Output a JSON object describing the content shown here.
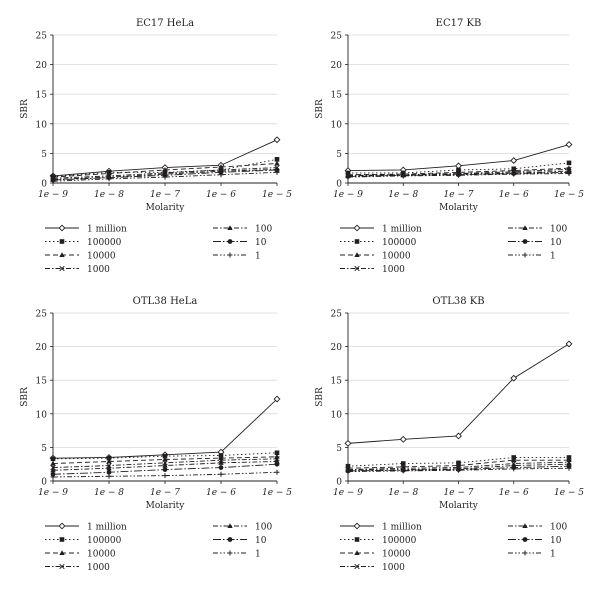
{
  "chart_data": [
    {
      "type": "line",
      "title": "EC17 HeLa",
      "xlabel": "Molarity",
      "ylabel": "SBR",
      "categories": [
        "1e − 9",
        "1e − 8",
        "1e − 7",
        "1e − 6",
        "1e − 5"
      ],
      "ylim": [
        0,
        25
      ],
      "yticks": [
        0,
        5,
        10,
        15,
        20,
        25
      ],
      "series": [
        {
          "name": "1 million",
          "values": [
            1.2,
            2.0,
            2.6,
            3.0,
            7.3
          ]
        },
        {
          "name": "100000",
          "values": [
            1.1,
            1.8,
            1.8,
            2.2,
            4.0
          ]
        },
        {
          "name": "10000",
          "values": [
            1.0,
            1.6,
            2.2,
            2.7,
            3.3
          ]
        },
        {
          "name": "1000",
          "values": [
            0.8,
            1.2,
            1.7,
            2.2,
            2.6
          ]
        },
        {
          "name": "100",
          "values": [
            0.6,
            1.0,
            1.5,
            2.0,
            2.3
          ]
        },
        {
          "name": "10",
          "values": [
            0.5,
            0.9,
            1.3,
            1.8,
            2.2
          ]
        },
        {
          "name": "1",
          "values": [
            0.3,
            0.7,
            1.0,
            1.4,
            1.8
          ]
        }
      ]
    },
    {
      "type": "line",
      "title": "EC17 KB",
      "xlabel": "Molarity",
      "ylabel": "SBR",
      "categories": [
        "1e − 9",
        "1e − 8",
        "1e − 7",
        "1e − 6",
        "1e − 5"
      ],
      "ylim": [
        0,
        25
      ],
      "yticks": [
        0,
        5,
        10,
        15,
        20,
        25
      ],
      "series": [
        {
          "name": "1 million",
          "values": [
            2.1,
            2.2,
            2.9,
            3.8,
            6.5
          ]
        },
        {
          "name": "100000",
          "values": [
            1.7,
            1.7,
            2.2,
            2.4,
            3.4
          ]
        },
        {
          "name": "10000",
          "values": [
            1.4,
            1.5,
            1.8,
            2.1,
            2.5
          ]
        },
        {
          "name": "1000",
          "values": [
            1.3,
            1.4,
            1.6,
            1.9,
            2.3
          ]
        },
        {
          "name": "100",
          "values": [
            1.2,
            1.3,
            1.5,
            1.7,
            2.0
          ]
        },
        {
          "name": "10",
          "values": [
            1.1,
            1.3,
            1.4,
            1.6,
            1.8
          ]
        },
        {
          "name": "1",
          "values": [
            1.0,
            1.2,
            1.3,
            1.5,
            1.6
          ]
        }
      ]
    },
    {
      "type": "line",
      "title": "OTL38 HeLa",
      "xlabel": "Molarity",
      "ylabel": "SBR",
      "categories": [
        "1e − 9",
        "1e − 8",
        "1e − 7",
        "1e − 6",
        "1e − 5"
      ],
      "ylim": [
        0,
        25
      ],
      "yticks": [
        0,
        5,
        10,
        15,
        20,
        25
      ],
      "series": [
        {
          "name": "1 million",
          "values": [
            3.4,
            3.5,
            3.9,
            4.3,
            12.2
          ]
        },
        {
          "name": "100000",
          "values": [
            3.3,
            3.4,
            3.7,
            3.8,
            4.2
          ]
        },
        {
          "name": "10000",
          "values": [
            2.6,
            2.9,
            3.2,
            3.4,
            3.6
          ]
        },
        {
          "name": "1000",
          "values": [
            2.0,
            2.3,
            2.7,
            3.1,
            3.3
          ]
        },
        {
          "name": "100",
          "values": [
            1.6,
            1.9,
            2.3,
            2.7,
            2.9
          ]
        },
        {
          "name": "10",
          "values": [
            1.0,
            1.3,
            1.7,
            2.0,
            2.5
          ]
        },
        {
          "name": "1",
          "values": [
            0.6,
            0.7,
            0.8,
            1.0,
            1.3
          ]
        }
      ]
    },
    {
      "type": "line",
      "title": "OTL38 KB",
      "xlabel": "Molarity",
      "ylabel": "SBR",
      "categories": [
        "1e − 9",
        "1e − 8",
        "1e − 7",
        "1e − 6",
        "1e − 5"
      ],
      "ylim": [
        0,
        25
      ],
      "yticks": [
        0,
        5,
        10,
        15,
        20,
        25
      ],
      "series": [
        {
          "name": "1 million",
          "values": [
            5.6,
            6.2,
            6.7,
            15.3,
            20.4
          ]
        },
        {
          "name": "100000",
          "values": [
            2.2,
            2.6,
            2.7,
            3.5,
            3.5
          ]
        },
        {
          "name": "10000",
          "values": [
            1.9,
            2.1,
            2.3,
            3.1,
            3.1
          ]
        },
        {
          "name": "1000",
          "values": [
            1.7,
            1.9,
            2.0,
            2.6,
            2.8
          ]
        },
        {
          "name": "100",
          "values": [
            1.6,
            1.7,
            1.8,
            2.3,
            2.5
          ]
        },
        {
          "name": "10",
          "values": [
            1.5,
            1.6,
            1.7,
            2.0,
            2.2
          ]
        },
        {
          "name": "1",
          "values": [
            1.4,
            1.5,
            1.6,
            1.8,
            1.9
          ]
        }
      ]
    }
  ],
  "legend": {
    "left_entries": [
      "1 million",
      "100000",
      "10000",
      "1000"
    ],
    "right_entries": [
      "100",
      "10",
      "1"
    ]
  },
  "styles": {
    "line_color": "#231f20",
    "grid_color": "#d9d9d9",
    "axis_color": "#231f20",
    "series_markers": [
      "open-diamond",
      "filled-square",
      "filled-triangle",
      "cross-x",
      "filled-triangle",
      "filled-circle",
      "plus"
    ],
    "series_dashes": [
      "solid",
      "dotted",
      "dashed",
      "dash-dot",
      "dash-dot",
      "long-dash-dot",
      "dash-dot-dot"
    ]
  }
}
